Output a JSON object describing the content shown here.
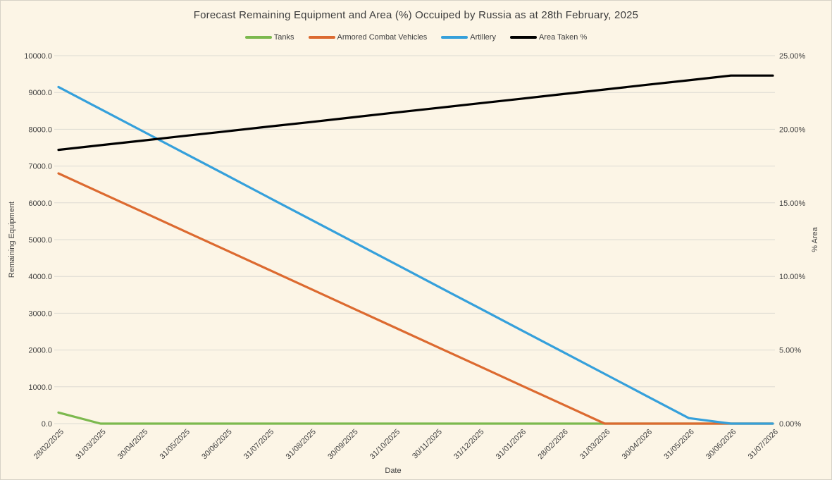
{
  "title": "Forecast Remaining Equipment and Area (%) Occuiped by Russia as at 28th February, 2025",
  "colors": {
    "background": "#FCF5E6",
    "gridline": "#DCDAD2",
    "text": "#404040",
    "tanks": "#7CB94E",
    "armored_combat_vehicles": "#DC6A30",
    "artillery": "#35A0DB",
    "area_taken": "#000000"
  },
  "chart_data": {
    "type": "line",
    "title": "Forecast Remaining Equipment and Area (%) Occuiped by Russia as at 28th February, 2025",
    "xlabel": "Date",
    "ylabel_left": "Remaining Equipment",
    "ylabel_right": "% Area",
    "ylim_left": [
      0,
      10000
    ],
    "ylim_right": [
      0,
      25
    ],
    "grid": "horizontal",
    "legend_position": "top-center",
    "x_tick_rotation": -45,
    "categories": [
      "28/02/2025",
      "31/03/2025",
      "30/04/2025",
      "31/05/2025",
      "30/06/2025",
      "31/07/2025",
      "31/08/2025",
      "30/09/2025",
      "31/10/2025",
      "30/11/2025",
      "31/12/2025",
      "31/01/2026",
      "28/02/2026",
      "31/03/2026",
      "30/04/2026",
      "31/05/2026",
      "30/06/2026",
      "31/07/2026"
    ],
    "axes": {
      "left": {
        "title": "Remaining Equipment",
        "max": 10000,
        "tick_labels": [
          "0.0",
          "1000.0",
          "2000.0",
          "3000.0",
          "4000.0",
          "5000.0",
          "6000.0",
          "7000.0",
          "8000.0",
          "9000.0",
          "10000.0"
        ]
      },
      "right": {
        "title": "% Area",
        "max": 25,
        "tick_labels": [
          "0.00%",
          "5.00%",
          "10.00%",
          "15.00%",
          "20.00%",
          "25.00%"
        ]
      },
      "x": {
        "title": "Date"
      }
    },
    "series": [
      {
        "name": "Tanks",
        "axis": "left",
        "color": "#7CB94E",
        "values": [
          300,
          0,
          0,
          0,
          0,
          0,
          0,
          0,
          0,
          0,
          0,
          0,
          0,
          0,
          0,
          0,
          0,
          0
        ]
      },
      {
        "name": "Armored Combat Vehicles",
        "axis": "left",
        "color": "#DC6A30",
        "values": [
          6800,
          6277,
          5754,
          5231,
          4708,
          4185,
          3662,
          3138,
          2615,
          2092,
          1569,
          1046,
          523,
          0,
          0,
          0,
          0,
          0
        ]
      },
      {
        "name": "Artillery",
        "axis": "left",
        "color": "#35A0DB",
        "values": [
          9150,
          8550,
          7950,
          7350,
          6750,
          6150,
          5550,
          4950,
          4350,
          3750,
          3150,
          2550,
          1950,
          1350,
          750,
          150,
          0,
          0
        ]
      },
      {
        "name": "Area Taken %",
        "axis": "right",
        "color": "#000000",
        "values": [
          18.6,
          18.92,
          19.23,
          19.55,
          19.86,
          20.18,
          20.49,
          20.81,
          21.13,
          21.44,
          21.76,
          22.07,
          22.39,
          22.7,
          23.02,
          23.33,
          23.65,
          23.65
        ]
      }
    ]
  }
}
